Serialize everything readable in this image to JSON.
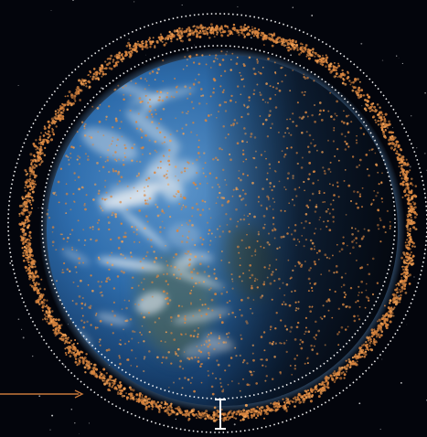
{
  "colors": {
    "space": "#03050c",
    "ocean": "#2f6fb0",
    "ocean_deep": "#17406f",
    "night_side": "#0d1420",
    "cloud": "#eef3f8",
    "debris": "#d9853f",
    "debris_bright": "#f0a055",
    "orbit_ring": "#ffffff",
    "pointer": "#c8783a",
    "bracket": "#ffffff"
  },
  "elements": {
    "stars": "starfield",
    "planet": "earth-globe",
    "debris_cloud": "orbital-debris-dots",
    "inner_ring": "dotted-inner-orbit-ring",
    "outer_ring": "dotted-outer-orbit-ring",
    "pointer": "arrow-pointer",
    "bracket": "orbit-band-bracket"
  }
}
